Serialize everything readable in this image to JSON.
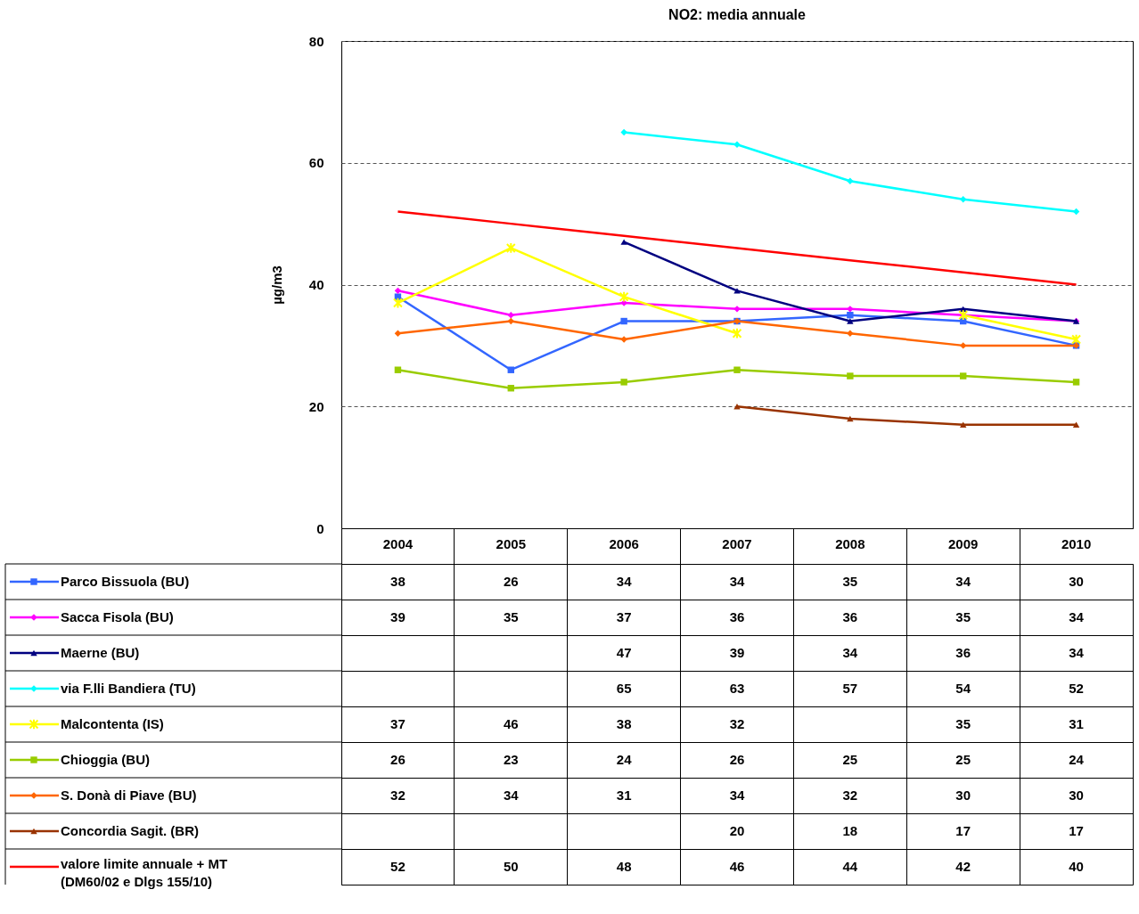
{
  "chart_data": {
    "type": "line",
    "title": "NO2: media annuale",
    "ylabel": "µg/m3",
    "categories": [
      "2004",
      "2005",
      "2006",
      "2007",
      "2008",
      "2009",
      "2010"
    ],
    "ylim": [
      0,
      80
    ],
    "yticks": [
      0,
      20,
      40,
      60,
      80
    ],
    "grid": "y",
    "legend": "bottom",
    "data_labels": true,
    "series": [
      {
        "name": "Parco Bissuola (BU)",
        "color": "#3366ff",
        "marker": "square",
        "values": [
          38,
          26,
          34,
          34,
          35,
          34,
          30
        ]
      },
      {
        "name": "Sacca Fisola (BU)",
        "color": "#ff00ff",
        "marker": "diamond",
        "values": [
          39,
          35,
          37,
          36,
          36,
          35,
          34
        ]
      },
      {
        "name": "Maerne (BU)",
        "color": "#000080",
        "marker": "triangle",
        "values": [
          null,
          null,
          47,
          39,
          34,
          36,
          34
        ]
      },
      {
        "name": "via F.lli Bandiera (TU)",
        "color": "#00ffff",
        "marker": "diamond",
        "values": [
          null,
          null,
          65,
          63,
          57,
          54,
          52
        ]
      },
      {
        "name": "Malcontenta (IS)",
        "color": "#ffff00",
        "marker": "cross",
        "values": [
          37,
          46,
          38,
          32,
          null,
          35,
          31
        ]
      },
      {
        "name": "Chioggia (BU)",
        "color": "#99cc00",
        "marker": "square",
        "values": [
          26,
          23,
          24,
          26,
          25,
          25,
          24
        ]
      },
      {
        "name": "S. Donà di Piave (BU)",
        "color": "#ff6600",
        "marker": "diamond",
        "values": [
          32,
          34,
          31,
          34,
          32,
          30,
          30
        ]
      },
      {
        "name": "Concordia Sagit. (BR)",
        "color": "#993300",
        "marker": "triangle",
        "values": [
          null,
          null,
          null,
          20,
          18,
          17,
          17
        ]
      },
      {
        "name": "valore limite annuale + MT (DM60/02 e Dlgs 155/10)",
        "color": "#ff0000",
        "marker": "none",
        "values": [
          52,
          50,
          48,
          46,
          44,
          42,
          40
        ]
      }
    ]
  }
}
